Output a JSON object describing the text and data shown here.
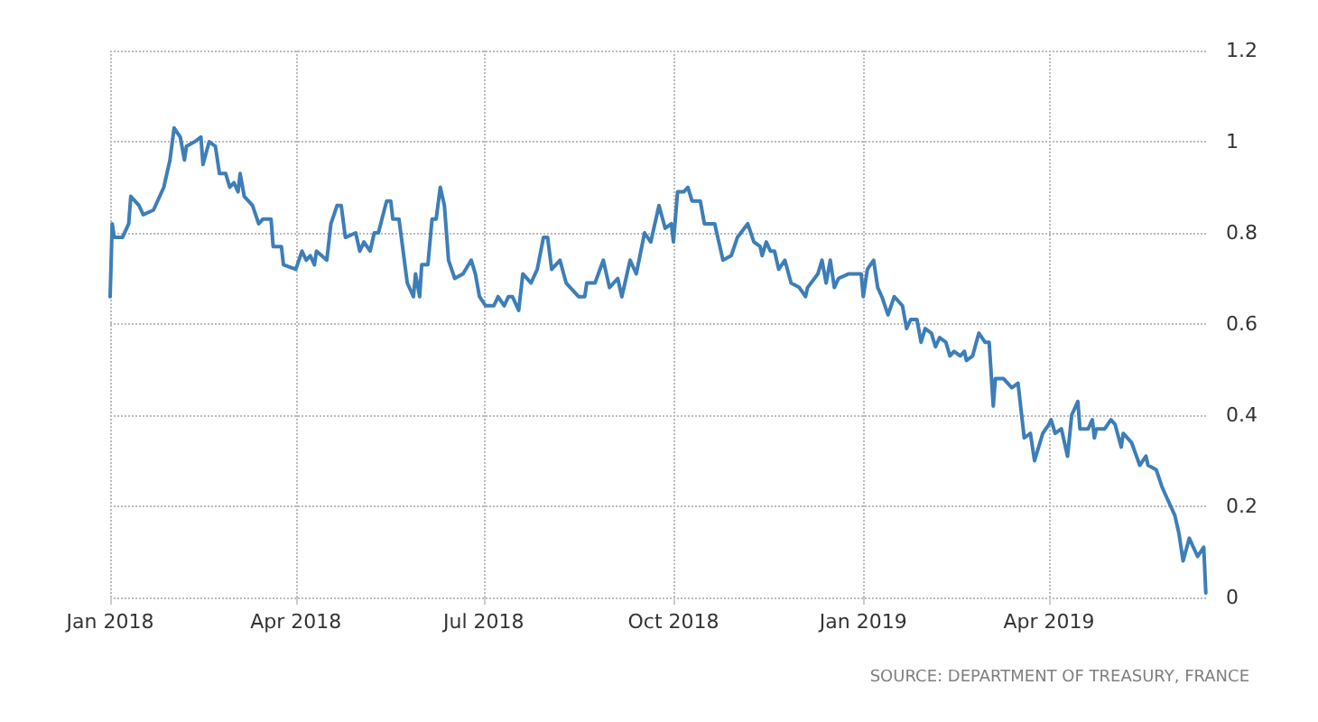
{
  "chart_data": {
    "type": "line",
    "annotations": [
      "SOURCE: DEPARTMENT OF TREASURY, FRANCE"
    ],
    "x": [
      "2018-01-01",
      "2018-01-02",
      "2018-01-03",
      "2018-01-07",
      "2018-01-10",
      "2018-01-11",
      "2018-01-15",
      "2018-01-17",
      "2018-01-22",
      "2018-01-27",
      "2018-01-30",
      "2018-02-01",
      "2018-02-04",
      "2018-02-06",
      "2018-02-07",
      "2018-02-11",
      "2018-02-14",
      "2018-02-15",
      "2018-02-18",
      "2018-02-21",
      "2018-02-23",
      "2018-02-26",
      "2018-02-28",
      "2018-03-02",
      "2018-03-04",
      "2018-03-05",
      "2018-03-07",
      "2018-03-11",
      "2018-03-14",
      "2018-03-16",
      "2018-03-20",
      "2018-03-21",
      "2018-03-25",
      "2018-03-26",
      "2018-04-01",
      "2018-04-04",
      "2018-04-06",
      "2018-04-08",
      "2018-04-10",
      "2018-04-11",
      "2018-04-16",
      "2018-04-18",
      "2018-04-21",
      "2018-04-23",
      "2018-04-25",
      "2018-04-30",
      "2018-05-02",
      "2018-05-04",
      "2018-05-07",
      "2018-05-09",
      "2018-05-11",
      "2018-05-15",
      "2018-05-17",
      "2018-05-18",
      "2018-05-21",
      "2018-05-23",
      "2018-05-25",
      "2018-05-28",
      "2018-05-29",
      "2018-05-31",
      "2018-06-01",
      "2018-06-04",
      "2018-06-06",
      "2018-06-08",
      "2018-06-10",
      "2018-06-12",
      "2018-06-14",
      "2018-06-17",
      "2018-06-21",
      "2018-06-25",
      "2018-06-27",
      "2018-06-29",
      "2018-07-02",
      "2018-07-06",
      "2018-07-08",
      "2018-07-11",
      "2018-07-13",
      "2018-07-15",
      "2018-07-18",
      "2018-07-20",
      "2018-07-24",
      "2018-07-27",
      "2018-07-30",
      "2018-08-01",
      "2018-08-03",
      "2018-08-07",
      "2018-08-10",
      "2018-08-14",
      "2018-08-16",
      "2018-08-19",
      "2018-08-20",
      "2018-08-24",
      "2018-08-28",
      "2018-08-31",
      "2018-09-04",
      "2018-09-06",
      "2018-09-10",
      "2018-09-13",
      "2018-09-17",
      "2018-09-20",
      "2018-09-24",
      "2018-09-27",
      "2018-09-30",
      "2018-10-01",
      "2018-10-03",
      "2018-10-06",
      "2018-10-08",
      "2018-10-10",
      "2018-10-14",
      "2018-10-16",
      "2018-10-19",
      "2018-10-21",
      "2018-10-23",
      "2018-10-25",
      "2018-10-29",
      "2018-11-01",
      "2018-11-06",
      "2018-11-09",
      "2018-11-12",
      "2018-11-13",
      "2018-11-15",
      "2018-11-17",
      "2018-11-19",
      "2018-11-21",
      "2018-11-24",
      "2018-11-27",
      "2018-12-01",
      "2018-12-04",
      "2018-12-05",
      "2018-12-10",
      "2018-12-12",
      "2018-12-14",
      "2018-12-16",
      "2018-12-18",
      "2018-12-20",
      "2018-12-25",
      "2018-12-31",
      "2019-01-01",
      "2019-01-03",
      "2019-01-06",
      "2019-01-08",
      "2019-01-10",
      "2019-01-13",
      "2019-01-16",
      "2019-01-18",
      "2019-01-20",
      "2019-01-22",
      "2019-01-24",
      "2019-01-27",
      "2019-01-29",
      "2019-01-31",
      "2019-02-03",
      "2019-02-05",
      "2019-02-07",
      "2019-02-10",
      "2019-02-12",
      "2019-02-14",
      "2019-02-17",
      "2019-02-19",
      "2019-02-20",
      "2019-02-23",
      "2019-02-26",
      "2019-03-01",
      "2019-03-03",
      "2019-03-05",
      "2019-03-06",
      "2019-03-10",
      "2019-03-14",
      "2019-03-17",
      "2019-03-20",
      "2019-03-23",
      "2019-03-25",
      "2019-03-29",
      "2019-04-01",
      "2019-04-02",
      "2019-04-04",
      "2019-04-07",
      "2019-04-10",
      "2019-04-12",
      "2019-04-15",
      "2019-04-16",
      "2019-04-20",
      "2019-04-22",
      "2019-04-23",
      "2019-04-24",
      "2019-04-28",
      "2019-05-01",
      "2019-05-03",
      "2019-05-06",
      "2019-05-07",
      "2019-05-11",
      "2019-05-15",
      "2019-05-18",
      "2019-05-19",
      "2019-05-23",
      "2019-05-26",
      "2019-05-29",
      "2019-06-01",
      "2019-06-03",
      "2019-06-05",
      "2019-06-08",
      "2019-06-10",
      "2019-06-12",
      "2019-06-15",
      "2019-06-16"
    ],
    "series": [
      {
        "color": "#3d7eb8",
        "values": [
          0.66,
          0.82,
          0.79,
          0.79,
          0.82,
          0.88,
          0.86,
          0.84,
          0.85,
          0.9,
          0.96,
          1.03,
          1.01,
          0.96,
          0.99,
          1.0,
          1.01,
          0.95,
          1.0,
          0.99,
          0.93,
          0.93,
          0.9,
          0.91,
          0.89,
          0.93,
          0.88,
          0.86,
          0.82,
          0.83,
          0.83,
          0.77,
          0.77,
          0.73,
          0.72,
          0.76,
          0.74,
          0.75,
          0.73,
          0.76,
          0.74,
          0.82,
          0.86,
          0.86,
          0.79,
          0.8,
          0.76,
          0.78,
          0.76,
          0.8,
          0.8,
          0.87,
          0.87,
          0.83,
          0.83,
          0.76,
          0.69,
          0.66,
          0.71,
          0.66,
          0.73,
          0.73,
          0.83,
          0.83,
          0.9,
          0.86,
          0.74,
          0.7,
          0.71,
          0.74,
          0.71,
          0.66,
          0.64,
          0.64,
          0.66,
          0.64,
          0.66,
          0.66,
          0.63,
          0.71,
          0.69,
          0.72,
          0.79,
          0.79,
          0.72,
          0.74,
          0.69,
          0.67,
          0.66,
          0.66,
          0.69,
          0.69,
          0.74,
          0.68,
          0.7,
          0.66,
          0.74,
          0.71,
          0.8,
          0.78,
          0.86,
          0.81,
          0.82,
          0.78,
          0.89,
          0.89,
          0.9,
          0.87,
          0.87,
          0.82,
          0.82,
          0.82,
          0.78,
          0.74,
          0.75,
          0.79,
          0.82,
          0.78,
          0.77,
          0.75,
          0.78,
          0.76,
          0.76,
          0.72,
          0.74,
          0.69,
          0.68,
          0.66,
          0.68,
          0.71,
          0.74,
          0.69,
          0.74,
          0.68,
          0.7,
          0.71,
          0.71,
          0.66,
          0.72,
          0.74,
          0.68,
          0.66,
          0.62,
          0.66,
          0.65,
          0.64,
          0.59,
          0.61,
          0.61,
          0.56,
          0.59,
          0.58,
          0.55,
          0.57,
          0.56,
          0.53,
          0.54,
          0.53,
          0.54,
          0.52,
          0.53,
          0.58,
          0.56,
          0.56,
          0.42,
          0.48,
          0.48,
          0.46,
          0.47,
          0.35,
          0.36,
          0.3,
          0.36,
          0.38,
          0.39,
          0.36,
          0.37,
          0.31,
          0.4,
          0.43,
          0.37,
          0.37,
          0.39,
          0.35,
          0.37,
          0.37,
          0.39,
          0.38,
          0.33,
          0.36,
          0.34,
          0.29,
          0.31,
          0.29,
          0.28,
          0.24,
          0.21,
          0.18,
          0.14,
          0.08,
          0.13,
          0.11,
          0.09,
          0.11,
          0.01
        ]
      }
    ],
    "xlim": [
      "2018-01-01",
      "2019-06-17"
    ],
    "xticks": [
      {
        "value": "2018-01-01",
        "label": "Jan 2018"
      },
      {
        "value": "2018-04-01",
        "label": "Apr 2018"
      },
      {
        "value": "2018-07-01",
        "label": "Jul 2018"
      },
      {
        "value": "2018-10-01",
        "label": "Oct 2018"
      },
      {
        "value": "2019-01-01",
        "label": "Jan 2019"
      },
      {
        "value": "2019-04-01",
        "label": "Apr 2019"
      }
    ],
    "ylim": [
      0,
      1.2
    ],
    "yticks": [
      0,
      0.2,
      0.4,
      0.6,
      0.8,
      1,
      1.2
    ],
    "grid": true,
    "line_style": "solid",
    "marker": "none"
  }
}
